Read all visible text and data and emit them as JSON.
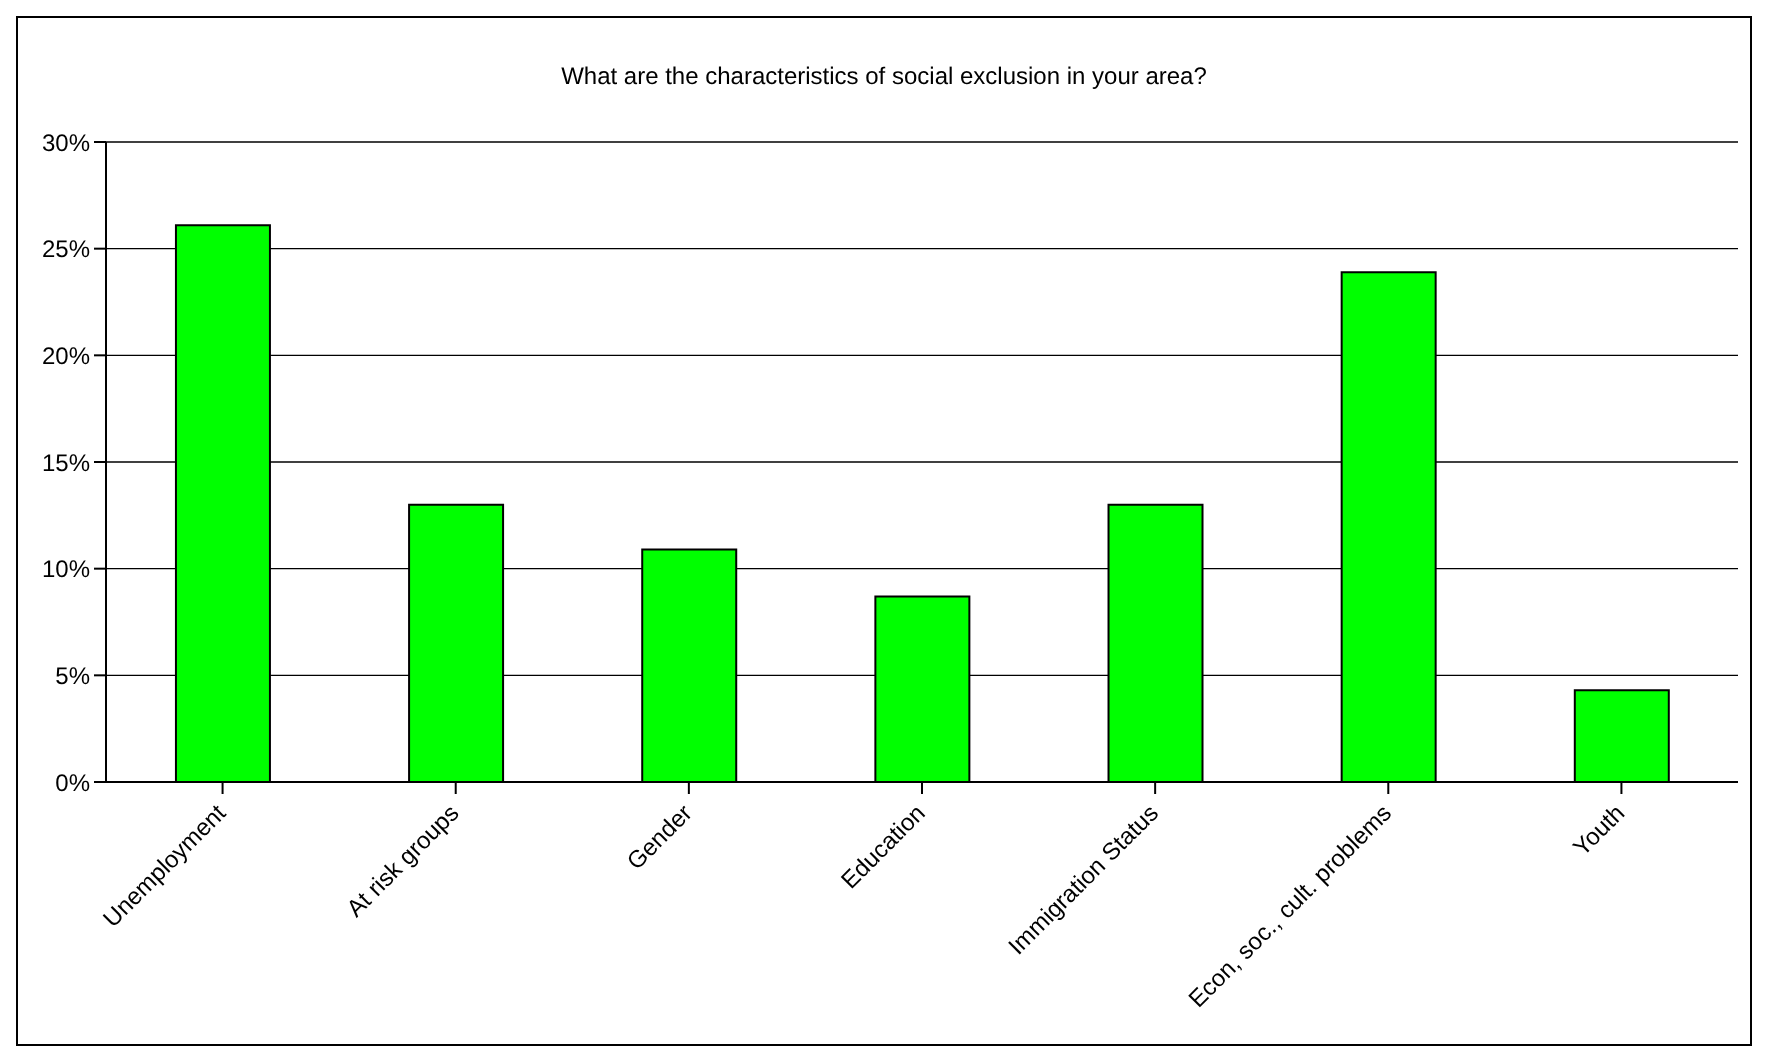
{
  "chart_data": {
    "type": "bar",
    "title": "What are the characteristics of social exclusion in your area?",
    "categories": [
      "Unemployment",
      "At risk groups",
      "Gender",
      "Education",
      "Immigration Status",
      "Econ, soc., cult. problems",
      "Youth"
    ],
    "values": [
      26.1,
      13.0,
      10.9,
      8.7,
      13.0,
      23.9,
      4.3
    ],
    "color": "#00ff00",
    "ylim": [
      0,
      30
    ],
    "yticks": [
      {
        "value": 0,
        "label": "0%"
      },
      {
        "value": 5,
        "label": "5%"
      },
      {
        "value": 10,
        "label": "10%"
      },
      {
        "value": 15,
        "label": "15%"
      },
      {
        "value": 20,
        "label": "20%"
      },
      {
        "value": 25,
        "label": "25%"
      },
      {
        "value": 30,
        "label": "30%"
      }
    ],
    "grid": "y",
    "legend": false
  }
}
